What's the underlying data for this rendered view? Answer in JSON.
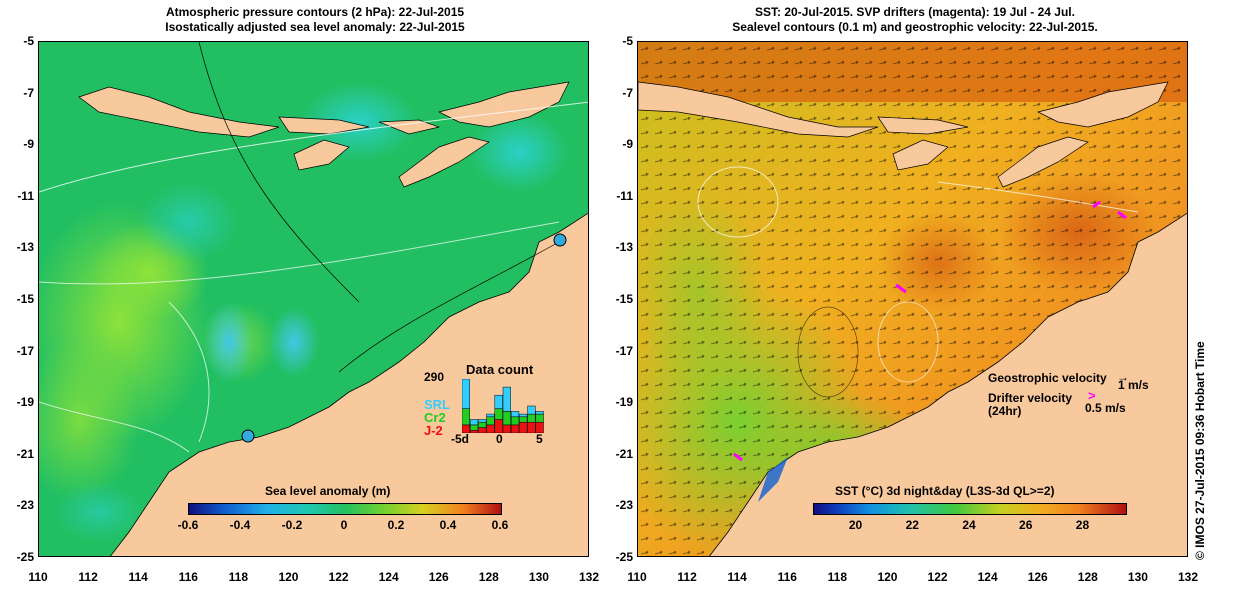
{
  "left_panel": {
    "title_line1": "Atmospheric pressure contours (2 hPa): 22-Jul-2015",
    "title_line2": "Isostatically adjusted sea level anomaly: 22-Jul-2015",
    "colorbar": {
      "label": "Sea level anomaly (m)",
      "ticks": [
        "-0.6",
        "-0.4",
        "-0.2",
        "0",
        "0.2",
        "0.4",
        "0.6"
      ],
      "range": [
        -0.6,
        0.6
      ]
    },
    "data_count": {
      "title": "Data count",
      "max_label": "290",
      "legend": [
        {
          "name": "SRL",
          "color": "#33ccff"
        },
        {
          "name": "Cr2",
          "color": "#22cc22"
        },
        {
          "name": "J-2",
          "color": "#ee1111"
        }
      ],
      "x_ticks": [
        "-5d",
        "0",
        "5"
      ],
      "bars": [
        {
          "srl": 0.55,
          "cr2": 0.3,
          "j2": 0.15
        },
        {
          "srl": 0.1,
          "cr2": 0.1,
          "j2": 0.05
        },
        {
          "srl": 0.05,
          "cr2": 0.1,
          "j2": 0.1
        },
        {
          "srl": 0.05,
          "cr2": 0.15,
          "j2": 0.15
        },
        {
          "srl": 0.25,
          "cr2": 0.2,
          "j2": 0.25
        },
        {
          "srl": 0.45,
          "cr2": 0.25,
          "j2": 0.15
        },
        {
          "srl": 0.1,
          "cr2": 0.15,
          "j2": 0.15
        },
        {
          "srl": 0.05,
          "cr2": 0.1,
          "j2": 0.2
        },
        {
          "srl": 0.15,
          "cr2": 0.15,
          "j2": 0.2
        },
        {
          "srl": 0.05,
          "cr2": 0.15,
          "j2": 0.2
        }
      ]
    }
  },
  "right_panel": {
    "title_line1": "SST: 20-Jul-2015. SVP drifters (magenta): 19 Jul - 24 Jul.",
    "title_line2": "Sealevel contours (0.1 m) and geostrophic velocity: 22-Jul-2015.",
    "colorbar": {
      "label": "SST (°C) 3d night&day (L3S-3d QL>=2)",
      "ticks": [
        "20",
        "22",
        "24",
        "26",
        "28"
      ],
      "range": [
        18.5,
        29.5
      ]
    },
    "legend": {
      "geostrophic": "Geostrophic velocity",
      "geostrophic_scale": "1 m/s",
      "drifter_line1": "Drifter velocity",
      "drifter_line2": "(24hr)",
      "drifter_scale": "0.5 m/s"
    },
    "credit": "© IMOS 27-Jul-2015 09:36 Hobart Time"
  },
  "axes": {
    "lat_ticks": [
      "-5",
      "-7",
      "-9",
      "-11",
      "-13",
      "-15",
      "-17",
      "-19",
      "-21",
      "-23",
      "-25"
    ],
    "lon_ticks": [
      "110",
      "112",
      "114",
      "116",
      "118",
      "120",
      "122",
      "124",
      "126",
      "128",
      "130",
      "132"
    ],
    "lat_range": [
      -25,
      -5
    ],
    "lon_range": [
      110,
      132
    ]
  },
  "colors": {
    "land": "#f9c99e",
    "ocean_sla": "#22c060",
    "ocean_sst": "#f0a020"
  }
}
